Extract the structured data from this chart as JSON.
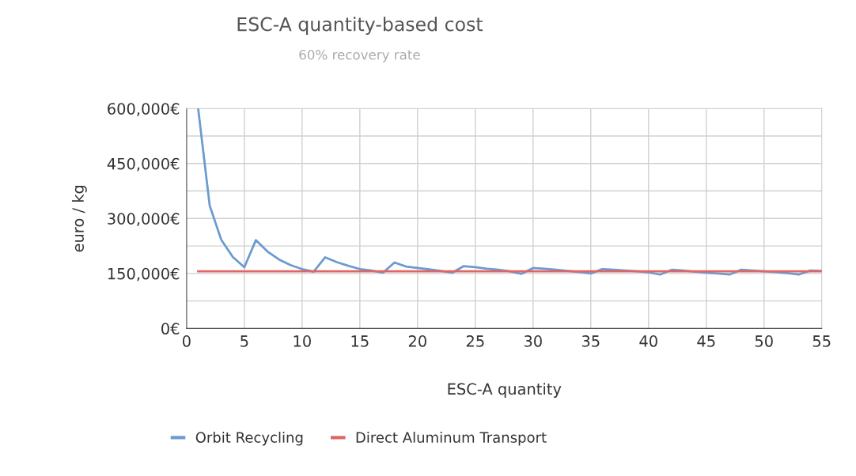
{
  "chart_data": {
    "type": "line",
    "title": "ESC-A quantity-based cost",
    "subtitle": "60% recovery rate",
    "xlabel": "ESC-A quantity",
    "ylabel": "euro / kg",
    "xlim": [
      0,
      55
    ],
    "xticks": [
      0,
      5,
      10,
      15,
      20,
      25,
      30,
      35,
      40,
      45,
      50,
      55
    ],
    "ylim": [
      0,
      600000
    ],
    "yticks": [
      {
        "value": 0,
        "label": "0€"
      },
      {
        "value": 75000,
        "label": null
      },
      {
        "value": 150000,
        "label": "150,000€"
      },
      {
        "value": 225000,
        "label": null
      },
      {
        "value": 300000,
        "label": "300,000€"
      },
      {
        "value": 375000,
        "label": null
      },
      {
        "value": 450000,
        "label": "450,000€"
      },
      {
        "value": 525000,
        "label": null
      },
      {
        "value": 600000,
        "label": "600,000€"
      }
    ],
    "grid": true,
    "legend": "bottom",
    "marker": "none",
    "line_style": "solid",
    "x": [
      1,
      2,
      3,
      4,
      5,
      6,
      7,
      8,
      9,
      10,
      11,
      12,
      13,
      14,
      15,
      16,
      17,
      18,
      19,
      20,
      21,
      22,
      23,
      24,
      25,
      26,
      27,
      28,
      29,
      30,
      31,
      32,
      33,
      34,
      35,
      36,
      37,
      38,
      39,
      40,
      41,
      42,
      43,
      44,
      45,
      46,
      47,
      48,
      49,
      50,
      51,
      52,
      53,
      54,
      55
    ],
    "series": [
      {
        "name": "Orbit Recycling",
        "color": "#6b9bcf",
        "values": [
          600000,
          335000,
          242000,
          195000,
          167000,
          241000,
          210000,
          188000,
          173000,
          162000,
          155000,
          194000,
          181000,
          171000,
          162000,
          158000,
          152000,
          180000,
          169000,
          165000,
          161000,
          157000,
          152000,
          170000,
          167000,
          163000,
          160000,
          156000,
          149000,
          165000,
          163000,
          160000,
          157000,
          154000,
          150000,
          162000,
          160000,
          158000,
          156000,
          153000,
          147000,
          160000,
          158000,
          155000,
          152000,
          150000,
          147000,
          160000,
          158000,
          156000,
          154000,
          151000,
          147000,
          158000,
          157000
        ]
      },
      {
        "name": "Direct Aluminum Transport",
        "color": "#e06666",
        "values": [
          156000,
          156000,
          156000,
          156000,
          156000,
          156000,
          156000,
          156000,
          156000,
          156000,
          156000,
          156000,
          156000,
          156000,
          156000,
          156000,
          156000,
          156000,
          156000,
          156000,
          156000,
          156000,
          156000,
          156000,
          156000,
          156000,
          156000,
          156000,
          156000,
          156000,
          156000,
          156000,
          156000,
          156000,
          156000,
          156000,
          156000,
          156000,
          156000,
          156000,
          156000,
          156000,
          156000,
          156000,
          156000,
          156000,
          156000,
          156000,
          156000,
          156000,
          156000,
          156000,
          156000,
          156000,
          156000
        ]
      }
    ]
  }
}
